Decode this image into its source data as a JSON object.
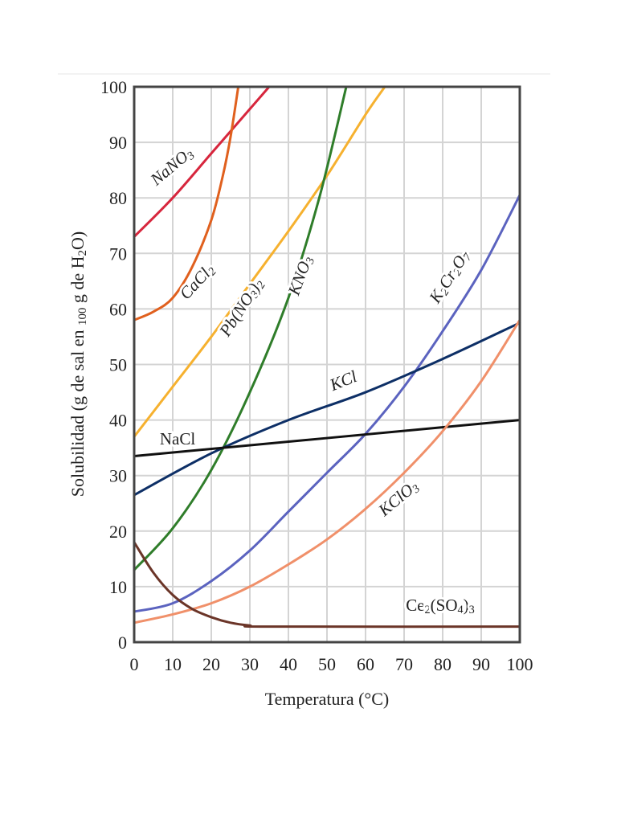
{
  "chart_data": {
    "type": "line",
    "title": "",
    "xlabel": "Temperatura (°C)",
    "ylabel": "Solubilidad (g de sal en 100 g de H2O)",
    "xlim": [
      0,
      100
    ],
    "ylim": [
      0,
      100
    ],
    "xticks": [
      "0",
      "10",
      "20",
      "30",
      "40",
      "50",
      "60",
      "70",
      "80",
      "90",
      "100"
    ],
    "yticks": [
      "0",
      "10",
      "20",
      "30",
      "40",
      "50",
      "60",
      "70",
      "80",
      "90",
      "100"
    ],
    "grid": true,
    "legend": "inline labels",
    "series": [
      {
        "name": "NaNO3",
        "color": "#d7263d",
        "points": [
          [
            0,
            73
          ],
          [
            10,
            80
          ],
          [
            20,
            88
          ],
          [
            30,
            96
          ],
          [
            35,
            100
          ]
        ]
      },
      {
        "name": "CaCl2",
        "color": "#e0601e",
        "points": [
          [
            0,
            58
          ],
          [
            5,
            59.5
          ],
          [
            10,
            62
          ],
          [
            15,
            67.5
          ],
          [
            20,
            76
          ],
          [
            23,
            84
          ],
          [
            25,
            91
          ],
          [
            27,
            100
          ]
        ]
      },
      {
        "name": "Pb(NO3)2",
        "color": "#f6b12f",
        "points": [
          [
            0,
            37
          ],
          [
            10,
            46
          ],
          [
            20,
            55
          ],
          [
            30,
            64.5
          ],
          [
            40,
            74
          ],
          [
            50,
            84
          ],
          [
            60,
            95
          ],
          [
            65,
            100
          ]
        ]
      },
      {
        "name": "KNO3",
        "color": "#2f7d2a",
        "points": [
          [
            0,
            13
          ],
          [
            10,
            20.5
          ],
          [
            20,
            31
          ],
          [
            30,
            45
          ],
          [
            40,
            62
          ],
          [
            48,
            80
          ],
          [
            55,
            100
          ]
        ]
      },
      {
        "name": "K2Cr2O7",
        "color": "#5b63bf",
        "points": [
          [
            0,
            5.5
          ],
          [
            10,
            7
          ],
          [
            20,
            11
          ],
          [
            30,
            16.5
          ],
          [
            40,
            23.5
          ],
          [
            50,
            30.5
          ],
          [
            60,
            37.5
          ],
          [
            70,
            46
          ],
          [
            80,
            56
          ],
          [
            90,
            67
          ],
          [
            100,
            80.5
          ]
        ]
      },
      {
        "name": "KCl",
        "color": "#0d2f66",
        "points": [
          [
            0,
            26.5
          ],
          [
            20,
            34
          ],
          [
            40,
            40
          ],
          [
            60,
            45
          ],
          [
            80,
            51
          ],
          [
            100,
            57.5
          ]
        ]
      },
      {
        "name": "NaCl",
        "color": "#111111",
        "points": [
          [
            0,
            33.5
          ],
          [
            100,
            40
          ]
        ]
      },
      {
        "name": "KClO3",
        "color": "#f0906a",
        "points": [
          [
            0,
            3.5
          ],
          [
            10,
            5
          ],
          [
            20,
            7
          ],
          [
            30,
            10
          ],
          [
            40,
            14
          ],
          [
            50,
            18.5
          ],
          [
            60,
            24
          ],
          [
            70,
            30.5
          ],
          [
            80,
            38
          ],
          [
            90,
            47
          ],
          [
            100,
            58
          ]
        ]
      },
      {
        "name": "Ce2(SO4)3",
        "color": "#6b3528",
        "points": [
          [
            0,
            18
          ],
          [
            5,
            12.5
          ],
          [
            10,
            8.5
          ],
          [
            15,
            6
          ],
          [
            20,
            4.5
          ],
          [
            25,
            3.5
          ],
          [
            30,
            3
          ],
          [
            35,
            2.8
          ],
          [
            100,
            2.8
          ]
        ]
      }
    ]
  }
}
